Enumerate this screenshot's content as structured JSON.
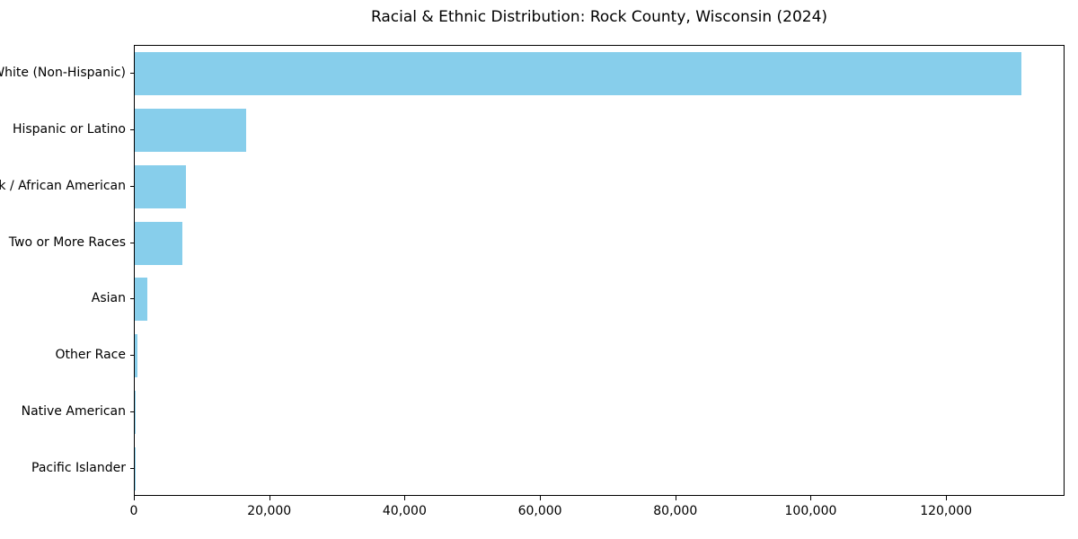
{
  "chart_data": {
    "type": "bar",
    "orientation": "horizontal",
    "title": "Racial & Ethnic Distribution: Rock County, Wisconsin (2024)",
    "categories": [
      "White (Non-Hispanic)",
      "Hispanic or Latino",
      "Black / African American",
      "Two or More Races",
      "Asian",
      "Other Race",
      "Native American",
      "Pacific Islander"
    ],
    "values": [
      131000,
      16500,
      7600,
      7000,
      1800,
      450,
      150,
      40
    ],
    "xlabel": "",
    "ylabel": "",
    "xlim": [
      0,
      137500
    ],
    "xticks": [
      0,
      20000,
      40000,
      60000,
      80000,
      100000,
      120000
    ],
    "xtick_labels": [
      "0",
      "20,000",
      "40,000",
      "60,000",
      "80,000",
      "100,000",
      "120,000"
    ],
    "grid": false,
    "legend": null,
    "bar_color": "#87CEEB",
    "background_color": "#ffffff",
    "spine_color": "#000000",
    "text_color": "#000000"
  }
}
